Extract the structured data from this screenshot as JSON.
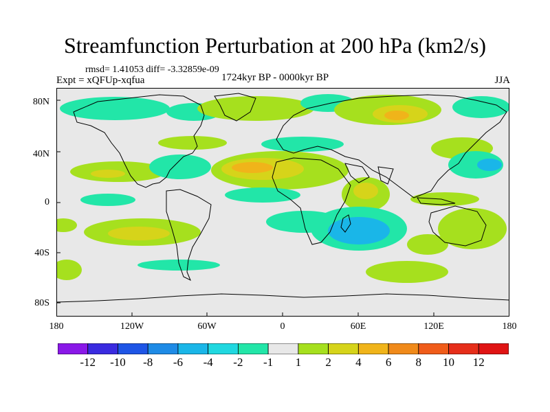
{
  "title": "Streamfunction Perturbation at 200 hPa (km2/s)",
  "stats": "rmsd= 1.41053 diff= -3.32859e-09",
  "experiment": "Expt = xQFUp-xqfua",
  "period": "1724kyr BP - 0000kyr BP",
  "season": "JJA",
  "map": {
    "y_labels": [
      "80N",
      "40N",
      "0",
      "40S",
      "80S"
    ],
    "x_labels": [
      "180",
      "120W",
      "60W",
      "0",
      "60E",
      "120E",
      "180"
    ],
    "lon_range": [
      -180,
      180
    ],
    "lat_range": [
      -90,
      90
    ]
  },
  "colorbar": {
    "labels": [
      "-12",
      "-10",
      "-8",
      "-6",
      "-4",
      "-2",
      "-1",
      "1",
      "2",
      "4",
      "6",
      "8",
      "10",
      "12"
    ],
    "colors": [
      "#8a18e8",
      "#3a2be0",
      "#1e55e6",
      "#1e8be6",
      "#1ab6e8",
      "#20d8e0",
      "#22e6a8",
      "#e8e8e8",
      "#a6e01e",
      "#d6d41a",
      "#f0b41a",
      "#f08a1a",
      "#f05c1a",
      "#e62e1a",
      "#e01414"
    ]
  }
}
